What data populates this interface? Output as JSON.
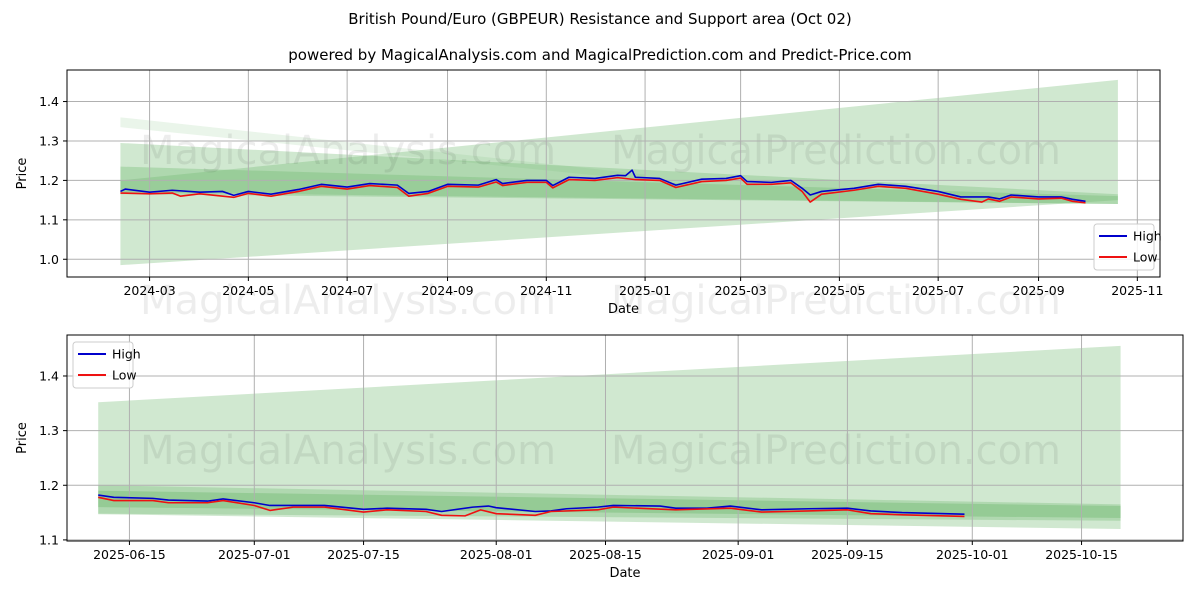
{
  "title": "British Pound/Euro (GBPEUR) Resistance and Support area (Oct 02)",
  "subtitle": "powered by MagicalAnalysis.com and MagicalPrediction.com and Predict-Price.com",
  "watermarks": [
    "MagicalAnalysis.com",
    "MagicalPrediction.com"
  ],
  "colors": {
    "high": "#0000cc",
    "low": "#ee1111",
    "band": "#6fb96f"
  },
  "chart_data": [
    {
      "type": "line",
      "xlabel": "Date",
      "ylabel": "Price",
      "legend": "lower-right",
      "grid": true,
      "xlim": [
        "2024-01-10",
        "2025-11-15"
      ],
      "ylim": [
        0.955,
        1.48
      ],
      "yticks": [
        1.0,
        1.1,
        1.2,
        1.3,
        1.4
      ],
      "xticks": [
        "2024-03-01",
        "2024-05-01",
        "2024-07-01",
        "2024-09-01",
        "2024-11-01",
        "2025-01-01",
        "2025-03-01",
        "2025-05-01",
        "2025-07-01",
        "2025-09-01",
        "2025-11-01"
      ],
      "xticklabels": [
        "2024-03",
        "2024-05",
        "2024-07",
        "2024-09",
        "2024-11",
        "2025-01",
        "2025-03",
        "2025-05",
        "2025-07",
        "2025-09",
        "2025-11"
      ],
      "bands": [
        {
          "start": "2024-02-12",
          "end": "2025-10-20",
          "from": [
            0.985,
            1.2
          ],
          "to": [
            1.15,
            1.455
          ],
          "opacity": 0.33
        },
        {
          "start": "2024-02-12",
          "end": "2025-10-20",
          "from": [
            1.165,
            1.295
          ],
          "to": [
            1.14,
            1.165
          ],
          "opacity": 0.33
        },
        {
          "start": "2024-02-12",
          "end": "2025-01-01",
          "from": [
            1.335,
            1.36
          ],
          "to": [
            1.2,
            1.215
          ],
          "opacity": 0.15
        },
        {
          "start": "2024-02-12",
          "end": "2025-10-20",
          "from": [
            1.17,
            1.235
          ],
          "to": [
            1.14,
            1.16
          ],
          "opacity": 0.35
        }
      ],
      "series": [
        {
          "name": "High",
          "points": [
            [
              "2024-02-12",
              1.172
            ],
            [
              "2024-02-15",
              1.178
            ],
            [
              "2024-03-01",
              1.17
            ],
            [
              "2024-03-15",
              1.175
            ],
            [
              "2024-04-01",
              1.17
            ],
            [
              "2024-04-15",
              1.172
            ],
            [
              "2024-04-22",
              1.162
            ],
            [
              "2024-05-01",
              1.172
            ],
            [
              "2024-05-15",
              1.165
            ],
            [
              "2024-06-01",
              1.177
            ],
            [
              "2024-06-15",
              1.19
            ],
            [
              "2024-07-01",
              1.183
            ],
            [
              "2024-07-15",
              1.192
            ],
            [
              "2024-08-01",
              1.188
            ],
            [
              "2024-08-08",
              1.167
            ],
            [
              "2024-08-20",
              1.172
            ],
            [
              "2024-09-01",
              1.19
            ],
            [
              "2024-09-20",
              1.188
            ],
            [
              "2024-10-01",
              1.202
            ],
            [
              "2024-10-05",
              1.192
            ],
            [
              "2024-10-20",
              1.2
            ],
            [
              "2024-11-01",
              1.2
            ],
            [
              "2024-11-05",
              1.187
            ],
            [
              "2024-11-15",
              1.208
            ],
            [
              "2024-12-01",
              1.205
            ],
            [
              "2024-12-15",
              1.213
            ],
            [
              "2024-12-20",
              1.212
            ],
            [
              "2024-12-24",
              1.226
            ],
            [
              "2024-12-26",
              1.208
            ],
            [
              "2025-01-10",
              1.205
            ],
            [
              "2025-01-20",
              1.188
            ],
            [
              "2025-02-05",
              1.203
            ],
            [
              "2025-02-20",
              1.205
            ],
            [
              "2025-03-01",
              1.212
            ],
            [
              "2025-03-05",
              1.197
            ],
            [
              "2025-03-20",
              1.195
            ],
            [
              "2025-04-01",
              1.2
            ],
            [
              "2025-04-08",
              1.18
            ],
            [
              "2025-04-13",
              1.163
            ],
            [
              "2025-04-20",
              1.172
            ],
            [
              "2025-05-10",
              1.18
            ],
            [
              "2025-05-25",
              1.19
            ],
            [
              "2025-06-11",
              1.185
            ],
            [
              "2025-07-01",
              1.172
            ],
            [
              "2025-07-15",
              1.158
            ],
            [
              "2025-08-01",
              1.158
            ],
            [
              "2025-08-08",
              1.153
            ],
            [
              "2025-08-15",
              1.163
            ],
            [
              "2025-09-01",
              1.158
            ],
            [
              "2025-09-15",
              1.158
            ],
            [
              "2025-09-22",
              1.152
            ],
            [
              "2025-09-30",
              1.147
            ]
          ]
        },
        {
          "name": "Low",
          "points": [
            [
              "2024-02-12",
              1.168
            ],
            [
              "2024-03-01",
              1.166
            ],
            [
              "2024-03-15",
              1.168
            ],
            [
              "2024-03-20",
              1.16
            ],
            [
              "2024-04-01",
              1.166
            ],
            [
              "2024-04-22",
              1.157
            ],
            [
              "2024-05-01",
              1.167
            ],
            [
              "2024-05-15",
              1.16
            ],
            [
              "2024-06-01",
              1.172
            ],
            [
              "2024-06-15",
              1.185
            ],
            [
              "2024-07-01",
              1.178
            ],
            [
              "2024-07-15",
              1.187
            ],
            [
              "2024-08-01",
              1.182
            ],
            [
              "2024-08-08",
              1.16
            ],
            [
              "2024-08-20",
              1.167
            ],
            [
              "2024-09-01",
              1.185
            ],
            [
              "2024-09-20",
              1.183
            ],
            [
              "2024-10-01",
              1.196
            ],
            [
              "2024-10-05",
              1.187
            ],
            [
              "2024-10-20",
              1.195
            ],
            [
              "2024-11-01",
              1.195
            ],
            [
              "2024-11-05",
              1.181
            ],
            [
              "2024-11-15",
              1.202
            ],
            [
              "2024-12-01",
              1.2
            ],
            [
              "2024-12-15",
              1.207
            ],
            [
              "2024-12-26",
              1.202
            ],
            [
              "2025-01-10",
              1.2
            ],
            [
              "2025-01-20",
              1.182
            ],
            [
              "2025-02-05",
              1.197
            ],
            [
              "2025-02-20",
              1.2
            ],
            [
              "2025-03-01",
              1.206
            ],
            [
              "2025-03-05",
              1.19
            ],
            [
              "2025-03-20",
              1.19
            ],
            [
              "2025-04-01",
              1.194
            ],
            [
              "2025-04-08",
              1.172
            ],
            [
              "2025-04-13",
              1.145
            ],
            [
              "2025-04-20",
              1.165
            ],
            [
              "2025-05-10",
              1.175
            ],
            [
              "2025-05-25",
              1.185
            ],
            [
              "2025-06-11",
              1.18
            ],
            [
              "2025-07-01",
              1.165
            ],
            [
              "2025-07-15",
              1.152
            ],
            [
              "2025-07-28",
              1.145
            ],
            [
              "2025-08-01",
              1.153
            ],
            [
              "2025-08-08",
              1.147
            ],
            [
              "2025-08-15",
              1.158
            ],
            [
              "2025-09-01",
              1.153
            ],
            [
              "2025-09-15",
              1.155
            ],
            [
              "2025-09-22",
              1.147
            ],
            [
              "2025-09-30",
              1.143
            ]
          ]
        }
      ]
    },
    {
      "type": "line",
      "xlabel": "Date",
      "ylabel": "Price",
      "legend": "upper-left",
      "grid": true,
      "xlim": [
        "2025-06-07",
        "2025-10-28"
      ],
      "ylim": [
        1.098,
        1.475
      ],
      "yticks": [
        1.1,
        1.2,
        1.3,
        1.4
      ],
      "xticks": [
        "2025-06-15",
        "2025-07-01",
        "2025-07-15",
        "2025-08-01",
        "2025-08-15",
        "2025-09-01",
        "2025-09-15",
        "2025-10-01",
        "2025-10-15"
      ],
      "xticklabels": [
        "2025-06-15",
        "2025-07-01",
        "2025-07-15",
        "2025-08-01",
        "2025-08-15",
        "2025-09-01",
        "2025-09-15",
        "2025-10-01",
        "2025-10-15"
      ],
      "bands": [
        {
          "start": "2025-06-11",
          "end": "2025-10-20",
          "from": [
            1.147,
            1.352
          ],
          "to": [
            1.12,
            1.455
          ],
          "opacity": 0.33
        },
        {
          "start": "2025-06-11",
          "end": "2025-10-20",
          "from": [
            1.148,
            1.2
          ],
          "to": [
            1.135,
            1.165
          ],
          "opacity": 0.33
        },
        {
          "start": "2025-06-11",
          "end": "2025-10-20",
          "from": [
            1.16,
            1.19
          ],
          "to": [
            1.14,
            1.162
          ],
          "opacity": 0.4
        }
      ],
      "series": [
        {
          "name": "High",
          "points": [
            [
              "2025-06-11",
              1.182
            ],
            [
              "2025-06-13",
              1.178
            ],
            [
              "2025-06-18",
              1.176
            ],
            [
              "2025-06-20",
              1.173
            ],
            [
              "2025-06-25",
              1.171
            ],
            [
              "2025-06-27",
              1.175
            ],
            [
              "2025-07-01",
              1.168
            ],
            [
              "2025-07-03",
              1.163
            ],
            [
              "2025-07-10",
              1.163
            ],
            [
              "2025-07-15",
              1.156
            ],
            [
              "2025-07-18",
              1.158
            ],
            [
              "2025-07-23",
              1.156
            ],
            [
              "2025-07-25",
              1.152
            ],
            [
              "2025-07-29",
              1.16
            ],
            [
              "2025-07-31",
              1.162
            ],
            [
              "2025-08-01",
              1.159
            ],
            [
              "2025-08-06",
              1.152
            ],
            [
              "2025-08-08",
              1.153
            ],
            [
              "2025-08-10",
              1.157
            ],
            [
              "2025-08-14",
              1.16
            ],
            [
              "2025-08-16",
              1.163
            ],
            [
              "2025-08-22",
              1.162
            ],
            [
              "2025-08-24",
              1.158
            ],
            [
              "2025-08-28",
              1.158
            ],
            [
              "2025-08-31",
              1.162
            ],
            [
              "2025-09-04",
              1.155
            ],
            [
              "2025-09-10",
              1.157
            ],
            [
              "2025-09-15",
              1.158
            ],
            [
              "2025-09-18",
              1.153
            ],
            [
              "2025-09-22",
              1.15
            ],
            [
              "2025-09-30",
              1.147
            ]
          ]
        },
        {
          "name": "Low",
          "points": [
            [
              "2025-06-11",
              1.178
            ],
            [
              "2025-06-13",
              1.172
            ],
            [
              "2025-06-18",
              1.172
            ],
            [
              "2025-06-20",
              1.168
            ],
            [
              "2025-06-25",
              1.168
            ],
            [
              "2025-06-27",
              1.172
            ],
            [
              "2025-07-01",
              1.163
            ],
            [
              "2025-07-03",
              1.154
            ],
            [
              "2025-07-06",
              1.16
            ],
            [
              "2025-07-10",
              1.16
            ],
            [
              "2025-07-15",
              1.151
            ],
            [
              "2025-07-18",
              1.155
            ],
            [
              "2025-07-23",
              1.152
            ],
            [
              "2025-07-25",
              1.145
            ],
            [
              "2025-07-28",
              1.144
            ],
            [
              "2025-07-30",
              1.155
            ],
            [
              "2025-08-01",
              1.148
            ],
            [
              "2025-08-06",
              1.145
            ],
            [
              "2025-08-08",
              1.152
            ],
            [
              "2025-08-14",
              1.155
            ],
            [
              "2025-08-16",
              1.16
            ],
            [
              "2025-08-24",
              1.155
            ],
            [
              "2025-08-31",
              1.158
            ],
            [
              "2025-09-04",
              1.151
            ],
            [
              "2025-09-10",
              1.153
            ],
            [
              "2025-09-15",
              1.155
            ],
            [
              "2025-09-18",
              1.148
            ],
            [
              "2025-09-22",
              1.146
            ],
            [
              "2025-09-30",
              1.143
            ]
          ]
        }
      ]
    }
  ]
}
